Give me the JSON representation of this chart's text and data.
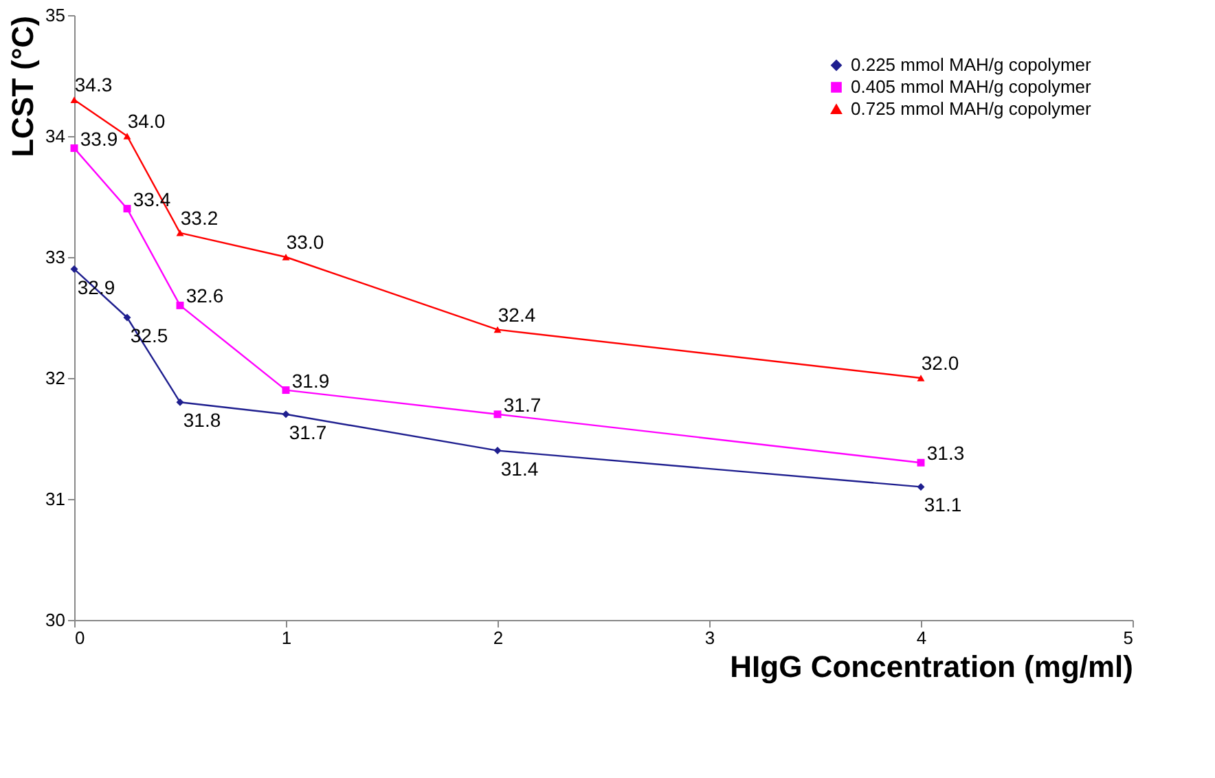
{
  "chart_data": {
    "type": "line",
    "xlabel": "HIgG Concentration (mg/ml)",
    "ylabel": "LCST (°C)",
    "x": [
      0,
      0.25,
      0.5,
      1,
      2,
      4
    ],
    "series": [
      {
        "name": "0.225 mmol MAH/g copolymer",
        "color": "#1f1f8f",
        "marker": "diamond",
        "values": [
          32.9,
          32.5,
          31.8,
          31.7,
          31.4,
          31.1
        ],
        "value_labels": [
          "32.9",
          "32.5",
          "31.8",
          "31.7",
          "31.4",
          "31.1"
        ]
      },
      {
        "name": "0.405 mmol MAH/g copolymer",
        "color": "#ff00ff",
        "marker": "square",
        "values": [
          33.9,
          33.4,
          32.6,
          31.9,
          31.7,
          31.3
        ],
        "value_labels": [
          "33.9",
          "33.4",
          "32.6",
          "31.9",
          "31.7",
          "31.3"
        ]
      },
      {
        "name": "0.725 mmol MAH/g copolymer",
        "color": "#ff0000",
        "marker": "triangle",
        "values": [
          34.3,
          34.0,
          33.2,
          33.0,
          32.4,
          32.0
        ],
        "value_labels": [
          "34.3",
          "34.0",
          "33.2",
          "33.0",
          "32.4",
          "32.0"
        ]
      }
    ],
    "xlim": [
      0,
      5
    ],
    "xticks": [
      0,
      1,
      2,
      3,
      4,
      5
    ],
    "ylim": [
      30,
      35
    ],
    "yticks": [
      30,
      31,
      32,
      33,
      34,
      35
    ],
    "grid": false,
    "legend": "top right",
    "line_style": "solid"
  }
}
